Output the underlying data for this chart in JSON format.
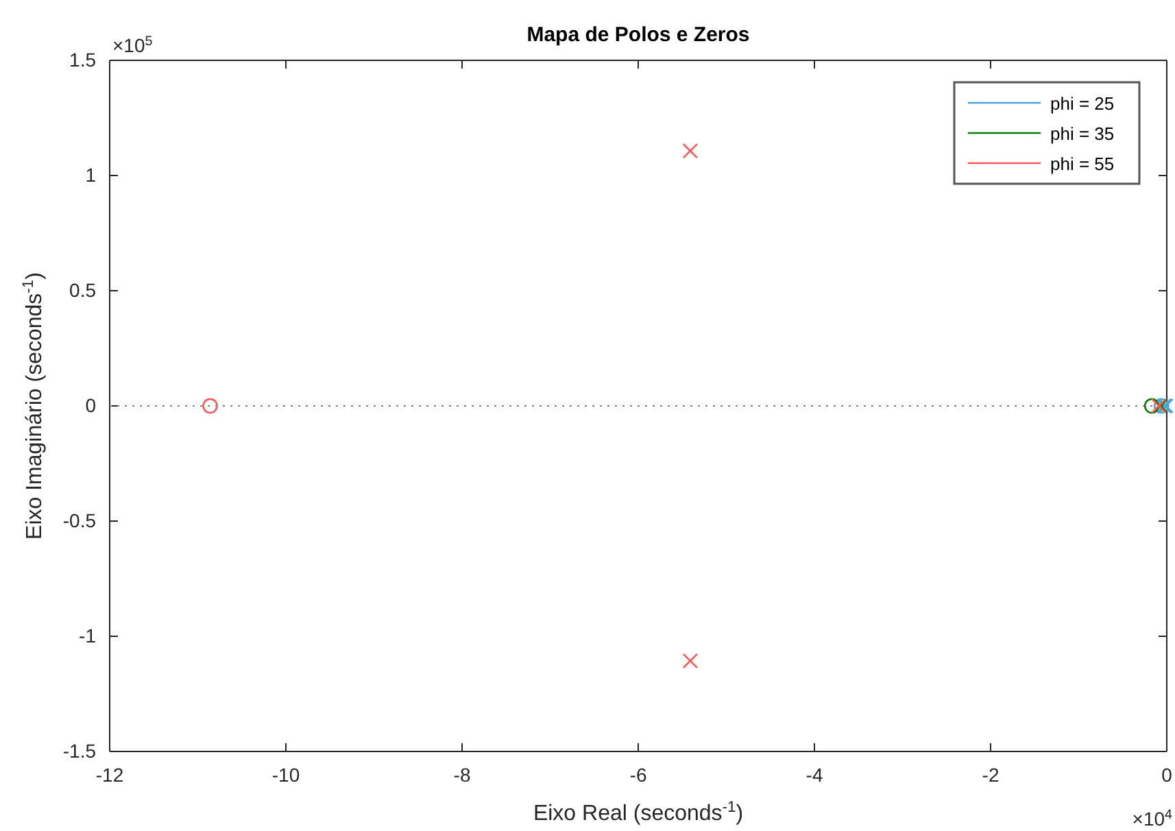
{
  "chart_data": {
    "type": "scatter",
    "title": "Mapa de Polos e Zeros",
    "xlabel": "Eixo Real (seconds$^{-1}$)",
    "ylabel": "Eixo Imaginário (seconds$^{-1}$)",
    "annotations": [
      "×10$^{5}$",
      "×10$^{4}$"
    ],
    "xlim": [
      -12,
      0
    ],
    "xticks": [
      -12,
      -10,
      -8,
      -6,
      -4,
      -2,
      0
    ],
    "ylim": [
      -1.5,
      1.5
    ],
    "yticks": [
      -1.5,
      -1,
      -0.5,
      0,
      0.5,
      1,
      1.5
    ],
    "grid": false,
    "legend": "top right",
    "ref_lines": [
      {
        "axis": "y",
        "value": 0,
        "label": null,
        "color": "#7f7f7f",
        "line_style": "dotted"
      }
    ],
    "series": [
      {
        "name": "phi = 25",
        "color": "#4da3e0",
        "marker": "cross",
        "x": [
          -0.03,
          -0.01
        ],
        "values": [
          0,
          0
        ]
      },
      {
        "color": "#4da3e0",
        "marker": "circle",
        "x": [
          -0.06
        ],
        "values": [
          0
        ]
      },
      {
        "name": "phi = 35",
        "color": "#008000",
        "marker": "cross",
        "x": [
          -0.07
        ],
        "values": [
          0
        ]
      },
      {
        "color": "#008000",
        "marker": "circle",
        "x": [
          -0.17
        ],
        "values": [
          0
        ]
      },
      {
        "name": "phi = 55",
        "color": "#ff5555",
        "marker": "cross",
        "x": [
          -5.41,
          -5.41,
          -0.09
        ],
        "values": [
          1.107,
          -1.107,
          0
        ]
      },
      {
        "color": "#ff5555",
        "marker": "circle",
        "x": [
          -10.86
        ],
        "values": [
          0
        ]
      }
    ]
  }
}
